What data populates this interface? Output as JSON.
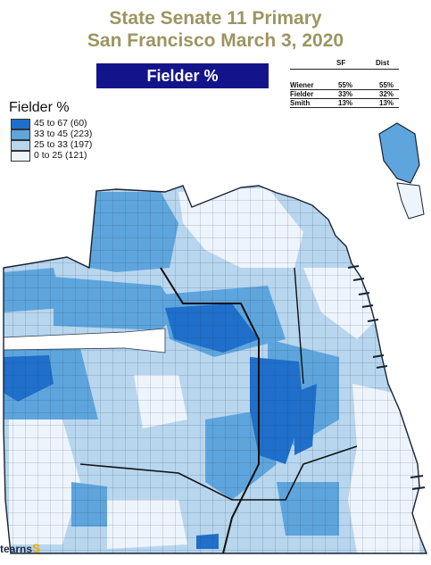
{
  "title": {
    "line1": "State Senate 11 Primary",
    "line2": "San Francisco  March 3, 2020"
  },
  "banner": "Fielder %",
  "results": {
    "headers": [
      "",
      "SF",
      "Dist"
    ],
    "rows": [
      {
        "name": "Wiener",
        "sf": "55%",
        "dist": "55%"
      },
      {
        "name": "Fielder",
        "sf": "33%",
        "dist": "32%"
      },
      {
        "name": "Smith",
        "sf": "13%",
        "dist": "13%"
      }
    ]
  },
  "legend": {
    "title": "Fielder %",
    "items": [
      {
        "label": "45 to 67   (60)",
        "color": "#1f6fcb"
      },
      {
        "label": "33 to 45  (223)",
        "color": "#5ea5dd"
      },
      {
        "label": "25 to 33  (197)",
        "color": "#b8d6ee"
      },
      {
        "label": "0 to 25  (121)",
        "color": "#eef4fc"
      }
    ]
  },
  "logo": {
    "text": "tearns",
    "mark": "S"
  },
  "colors": {
    "title": "#9c9562",
    "banner": "#14148a",
    "dark": "#1f6fcb",
    "mid": "#5ea5dd",
    "light": "#b8d6ee",
    "pale": "#eef4fc"
  }
}
